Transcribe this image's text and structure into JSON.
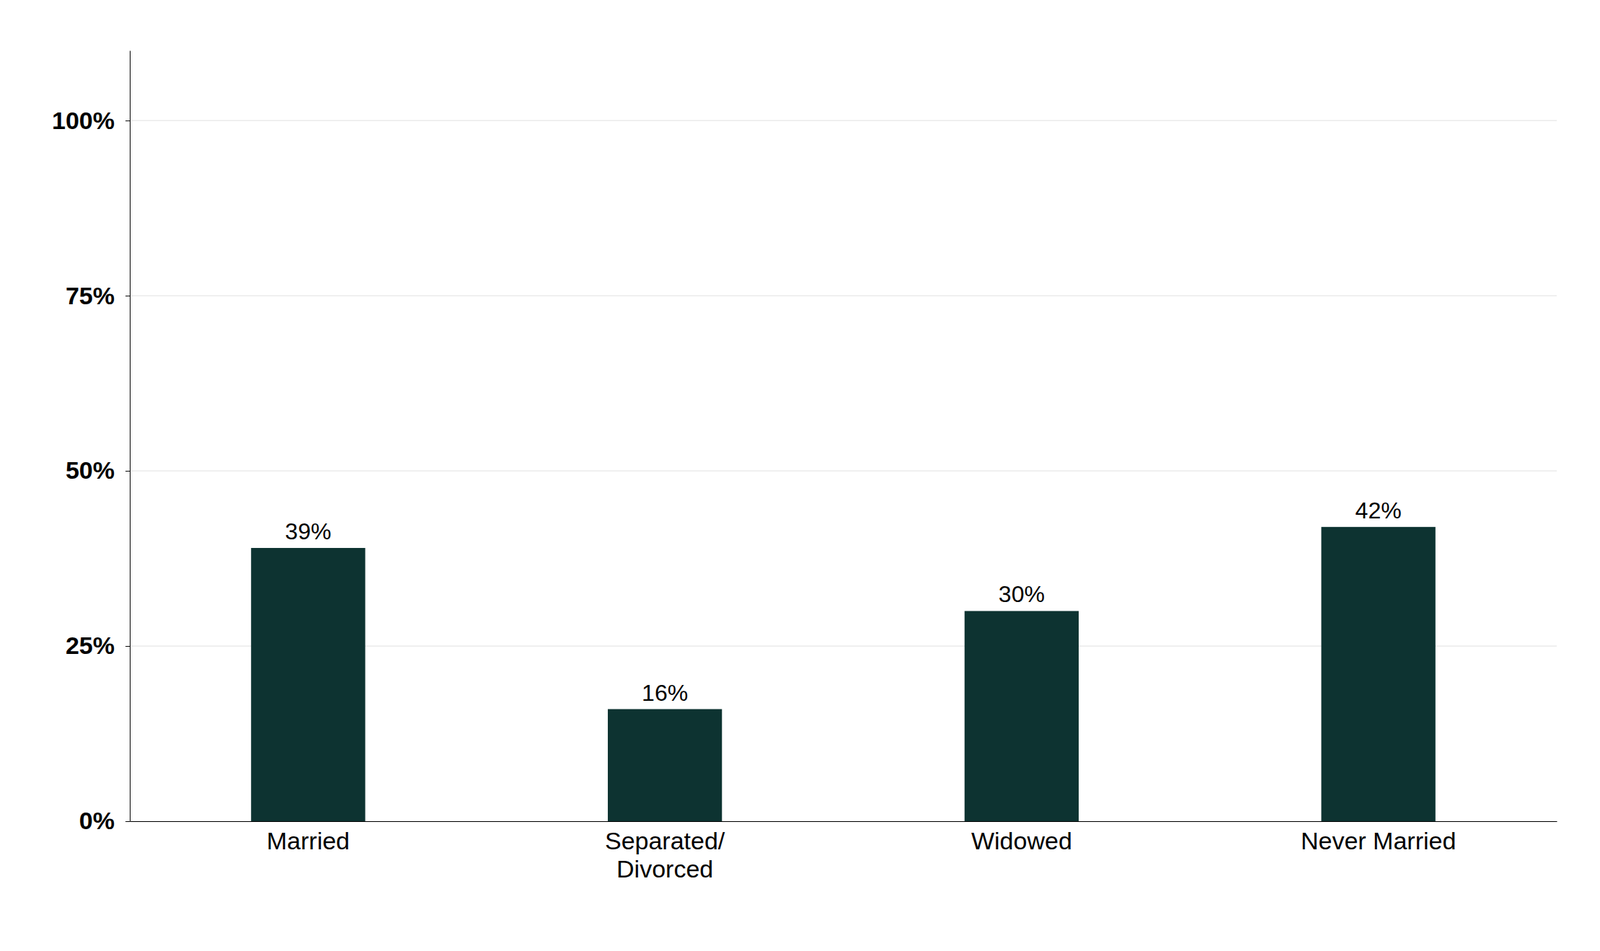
{
  "chart_data": {
    "type": "bar",
    "categories": [
      "Married",
      "Separated/\nDivorced",
      "Widowed",
      "Never Married"
    ],
    "values": [
      39,
      16,
      30,
      42
    ],
    "value_labels": [
      "39%",
      "16%",
      "30%",
      "42%"
    ],
    "data_labels": true,
    "color": "#0d3331",
    "ylim": [
      0,
      110
    ],
    "yticks": [
      {
        "value": 0,
        "label": "0%"
      },
      {
        "value": 25,
        "label": "25%"
      },
      {
        "value": 50,
        "label": "50%"
      },
      {
        "value": 75,
        "label": "75%"
      },
      {
        "value": 100,
        "label": "100%"
      }
    ],
    "grid": true
  }
}
